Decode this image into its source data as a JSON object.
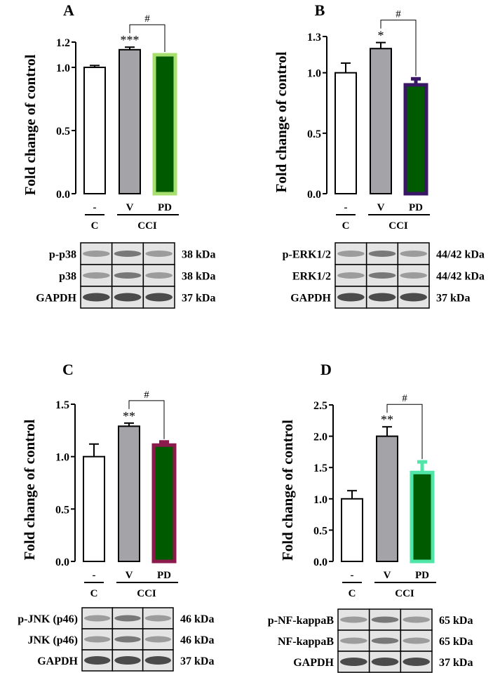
{
  "ylabel": "Fold change of control",
  "group_labels": {
    "control_dash": "-",
    "control": "C",
    "cci": "CCI"
  },
  "chart_data": [
    {
      "panel": "A",
      "type": "bar",
      "categories": [
        "-",
        "V",
        "PD"
      ],
      "values": [
        1.0,
        1.14,
        1.1
      ],
      "errors": [
        0.015,
        0.02,
        0.0
      ],
      "yticks": [
        0.0,
        0.5,
        1.0,
        1.2
      ],
      "ylim": [
        0,
        1.2
      ],
      "ylabel": "Fold change of control",
      "significance": [
        {
          "bar": 1,
          "text": "***"
        },
        {
          "from": 1,
          "to": 2,
          "text": "#"
        }
      ],
      "colors": {
        "fills": [
          "#ffffff",
          "#a3a3a8",
          "#005a00"
        ],
        "edges": [
          "#000000",
          "#000000",
          "#a8e070"
        ]
      },
      "blot": {
        "rows": [
          {
            "label": "p-p38",
            "kda": "38 kDa"
          },
          {
            "label": "p38",
            "kda": "38 kDa"
          },
          {
            "label": "GAPDH",
            "kda": "37 kDa"
          }
        ]
      }
    },
    {
      "panel": "B",
      "type": "bar",
      "categories": [
        "-",
        "V",
        "PD"
      ],
      "values": [
        1.0,
        1.2,
        0.9
      ],
      "errors": [
        0.08,
        0.05,
        0.05
      ],
      "yticks": [
        0.0,
        0.5,
        1.0,
        1.3
      ],
      "ylim": [
        0,
        1.3
      ],
      "ylabel": "Fold change of control",
      "significance": [
        {
          "bar": 1,
          "text": "*"
        },
        {
          "from": 1,
          "to": 2,
          "text": "#"
        }
      ],
      "colors": {
        "fills": [
          "#ffffff",
          "#a3a3a8",
          "#005a00"
        ],
        "edges": [
          "#000000",
          "#000000",
          "#3a1766"
        ]
      },
      "blot": {
        "rows": [
          {
            "label": "p-ERK1/2",
            "kda": "44/42 kDa"
          },
          {
            "label": "ERK1/2",
            "kda": "44/42 kDa"
          },
          {
            "label": "GAPDH",
            "kda": "37 kDa"
          }
        ]
      }
    },
    {
      "panel": "C",
      "type": "bar",
      "categories": [
        "-",
        "V",
        "PD"
      ],
      "values": [
        1.0,
        1.29,
        1.11
      ],
      "errors": [
        0.12,
        0.03,
        0.03
      ],
      "yticks": [
        0.0,
        0.5,
        1.0,
        1.5
      ],
      "ylim": [
        0,
        1.5
      ],
      "ylabel": "Fold change of control",
      "significance": [
        {
          "bar": 1,
          "text": "**"
        },
        {
          "from": 1,
          "to": 2,
          "text": "#"
        }
      ],
      "colors": {
        "fills": [
          "#ffffff",
          "#a3a3a8",
          "#005a00"
        ],
        "edges": [
          "#000000",
          "#000000",
          "#8c1a4c"
        ]
      },
      "blot": {
        "rows": [
          {
            "label": "p-JNK (p46)",
            "kda": "46 kDa"
          },
          {
            "label": "JNK (p46)",
            "kda": "46 kDa"
          },
          {
            "label": "GAPDH",
            "kda": "37 kDa"
          }
        ]
      }
    },
    {
      "panel": "D",
      "type": "bar",
      "categories": [
        "-",
        "V",
        "PD"
      ],
      "values": [
        1.0,
        2.0,
        1.42
      ],
      "errors": [
        0.13,
        0.15,
        0.17
      ],
      "yticks": [
        0.0,
        0.5,
        1.0,
        1.5,
        2.0,
        2.5
      ],
      "ylim": [
        0,
        2.5
      ],
      "ylabel": "Fold change of control",
      "significance": [
        {
          "bar": 1,
          "text": "**"
        },
        {
          "from": 1,
          "to": 2,
          "text": "#"
        }
      ],
      "colors": {
        "fills": [
          "#ffffff",
          "#a3a3a8",
          "#005a00"
        ],
        "edges": [
          "#000000",
          "#000000",
          "#4fe6a8"
        ]
      },
      "blot": {
        "rows": [
          {
            "label": "p-NF-kappaB",
            "kda": "65 kDa"
          },
          {
            "label": "NF-kappaB",
            "kda": "65 kDa"
          },
          {
            "label": "GAPDH",
            "kda": "37 kDa"
          }
        ]
      }
    }
  ]
}
